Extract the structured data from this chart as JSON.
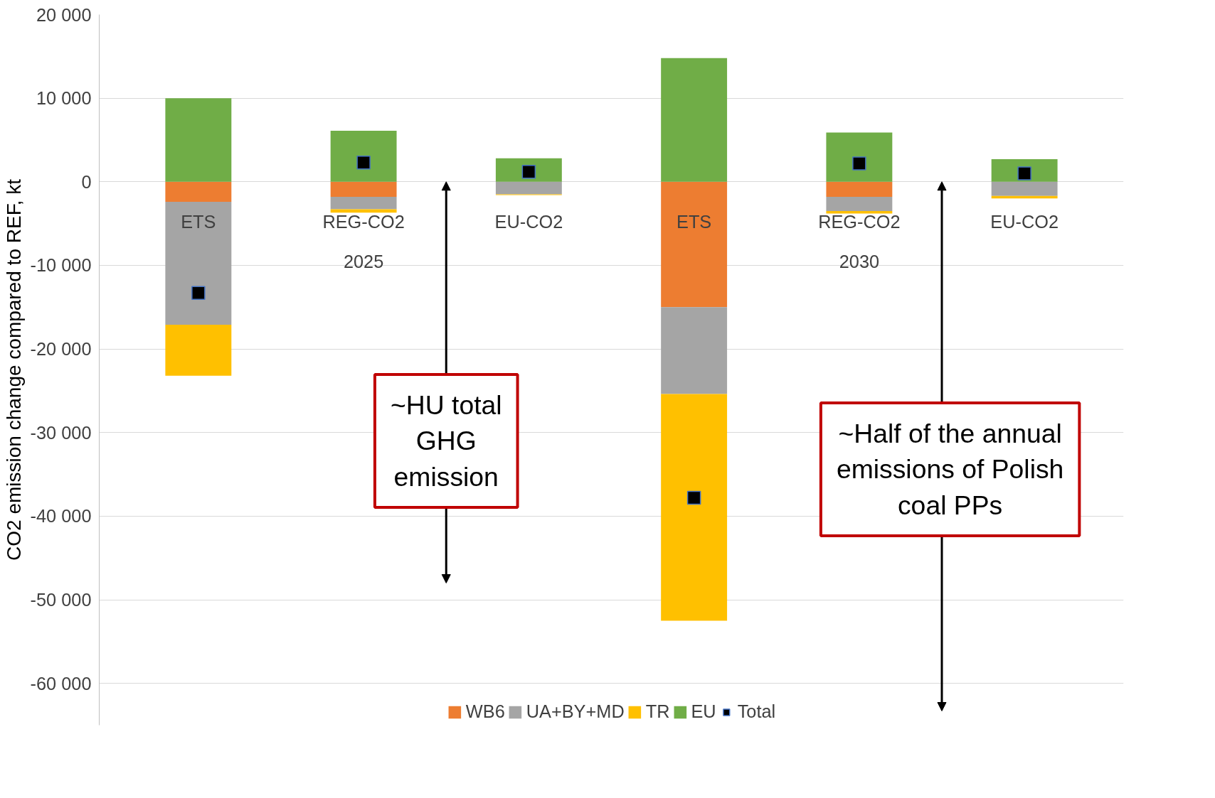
{
  "chart_data": {
    "type": "bar",
    "stacked": true,
    "ylabel": "CO2 emission change compared to REF, kt",
    "categories": [
      "ETS",
      "REG-CO2",
      "EU-CO2",
      "ETS",
      "REG-CO2",
      "EU-CO2"
    ],
    "series": [
      {
        "name": "WB6",
        "color": "#ed7d31",
        "values": [
          -2400,
          -1800,
          0,
          -15000,
          -1800,
          0
        ]
      },
      {
        "name": "UA+BY+MD",
        "color": "#a5a5a5",
        "values": [
          -14700,
          -1500,
          -1500,
          -10400,
          -1700,
          -1700
        ]
      },
      {
        "name": "TR",
        "color": "#ffc000",
        "values": [
          -6100,
          -400,
          -100,
          -27100,
          -300,
          -300
        ]
      },
      {
        "name": "EU",
        "color": "#70ad47",
        "values": [
          10000,
          6100,
          2800,
          14800,
          5900,
          2700
        ]
      },
      {
        "name": "Total",
        "type": "scatter",
        "color": "#000000",
        "values": [
          -13300,
          2300,
          1200,
          -37800,
          2200,
          1000
        ]
      }
    ],
    "ylim": [
      -65000,
      20000
    ],
    "yticks": [
      {
        "value": 20000,
        "label": "20 000"
      },
      {
        "value": 10000,
        "label": "10 000"
      },
      0,
      {
        "value": -10000,
        "label": "-10 000"
      },
      {
        "value": -20000,
        "label": "-20 000"
      },
      {
        "value": -30000,
        "label": "-30 000"
      },
      {
        "value": -40000,
        "label": "-40 000"
      },
      {
        "value": -50000,
        "label": "-50 000"
      },
      {
        "value": -60000,
        "label": "-60 000"
      }
    ],
    "grid": "y",
    "legend": "bottom",
    "marker": "square",
    "annotations": [
      "2025",
      "2030",
      "~HU total\nGHG\nemission",
      "~Half of the annual\nemissions of Polish\ncoal PPs"
    ]
  }
}
